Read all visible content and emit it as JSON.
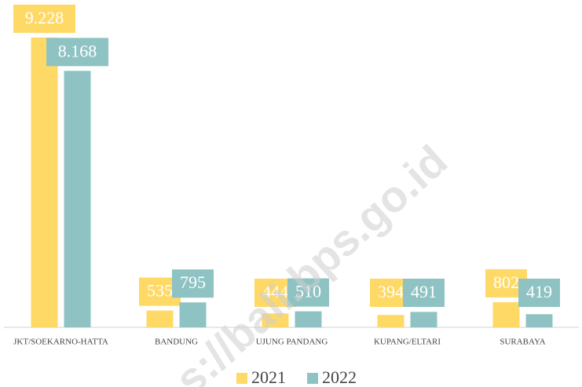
{
  "chart_data": {
    "type": "bar",
    "categories": [
      "JKT/SOEKARNO-HATTA",
      "BANDUNG",
      "UJUNG PANDANG",
      "KUPANG/ELTARI",
      "SURABAYA"
    ],
    "series": [
      {
        "name": "2021",
        "color": "#ffd966",
        "values": [
          9228,
          535,
          444,
          394,
          802
        ],
        "value_labels": [
          "9.228",
          "535",
          "444",
          "394",
          "802"
        ]
      },
      {
        "name": "2022",
        "color": "#8fc3c3",
        "values": [
          8168,
          795,
          510,
          491,
          419
        ],
        "value_labels": [
          "8.168",
          "795",
          "510",
          "491",
          "419"
        ]
      }
    ],
    "ylim": [
      0,
      10000
    ],
    "watermark": "s://bali.bps.go.id"
  }
}
